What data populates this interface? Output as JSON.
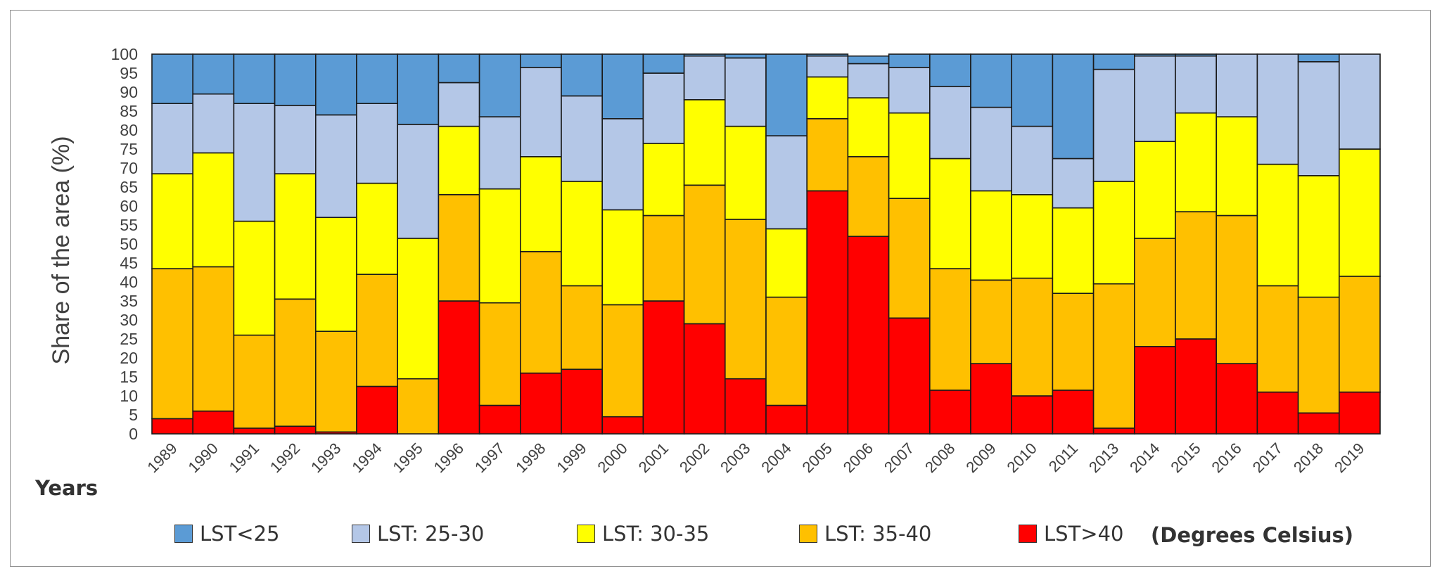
{
  "chart_data": {
    "type": "bar",
    "stacked": true,
    "title": "",
    "xlabel": "Years",
    "ylabel": "Share of the area (%)",
    "ylim": [
      0,
      100
    ],
    "yticks": [
      0,
      5,
      10,
      15,
      20,
      25,
      30,
      35,
      40,
      45,
      50,
      55,
      60,
      65,
      70,
      75,
      80,
      85,
      90,
      95,
      100
    ],
    "categories": [
      "1989",
      "1990",
      "1991",
      "1992",
      "1993",
      "1994",
      "1995",
      "1996",
      "1997",
      "1998",
      "1999",
      "2000",
      "2001",
      "2002",
      "2003",
      "2004",
      "2005",
      "2006",
      "2007",
      "2008",
      "2009",
      "2010",
      "2011",
      "2013",
      "2014",
      "2015",
      "2016",
      "2017",
      "2018",
      "2019"
    ],
    "series": [
      {
        "name": "LST>40",
        "color": "#ff0000",
        "values": [
          4,
          6,
          1.5,
          2,
          0.5,
          12.5,
          0,
          35,
          7.5,
          16,
          17,
          4.5,
          35,
          29,
          14.5,
          7.5,
          64,
          52,
          30.5,
          11.5,
          18.5,
          10,
          11.5,
          1.5,
          23,
          25,
          18.5,
          11,
          5.5,
          11
        ]
      },
      {
        "name": "LST: 35-40",
        "color": "#ffc000",
        "values": [
          39.5,
          38,
          24.5,
          33.5,
          26.5,
          29.5,
          14.5,
          28,
          27,
          32,
          22,
          29.5,
          22.5,
          36.5,
          42,
          28.5,
          19,
          21,
          31.5,
          32,
          22,
          31,
          25.5,
          38,
          28.5,
          33.5,
          39,
          28,
          30.5,
          30.5
        ]
      },
      {
        "name": "LST: 30-35",
        "color": "#ffff00",
        "values": [
          25,
          30,
          30,
          33,
          30,
          24,
          37,
          18,
          30,
          25,
          27.5,
          25,
          19,
          22.5,
          24.5,
          18,
          11,
          15.5,
          22.5,
          29,
          23.5,
          22,
          22.5,
          27,
          25.5,
          26,
          26,
          32,
          32,
          33.5
        ]
      },
      {
        "name": "LST: 25-30",
        "color": "#b4c7e7",
        "values": [
          18.5,
          15.5,
          31,
          18,
          27,
          21,
          30,
          11.5,
          19,
          23.5,
          22.5,
          24,
          18.5,
          11.5,
          18,
          24.5,
          5.5,
          9,
          12,
          19,
          22,
          18,
          13,
          29.5,
          22.5,
          15,
          16.5,
          29,
          30,
          25
        ]
      },
      {
        "name": "LST<25",
        "color": "#5b9bd5",
        "values": [
          13,
          10.5,
          13,
          13.5,
          16,
          13,
          18.5,
          7.5,
          16.5,
          3.5,
          11,
          17,
          5.5,
          0.5,
          1,
          21.5,
          0.5,
          2,
          3.5,
          8.5,
          14,
          19,
          27.5,
          4,
          0.5,
          0.5,
          0,
          0,
          2,
          0
        ]
      }
    ],
    "legend": {
      "position": "bottom",
      "items": [
        "LST<25",
        "LST: 25-30",
        "LST: 30-35",
        "LST: 35-40",
        "LST>40"
      ],
      "colors": [
        "#5b9bd5",
        "#b4c7e7",
        "#ffff00",
        "#ffc000",
        "#ff0000"
      ],
      "note": "(Degrees Celsius)"
    }
  }
}
